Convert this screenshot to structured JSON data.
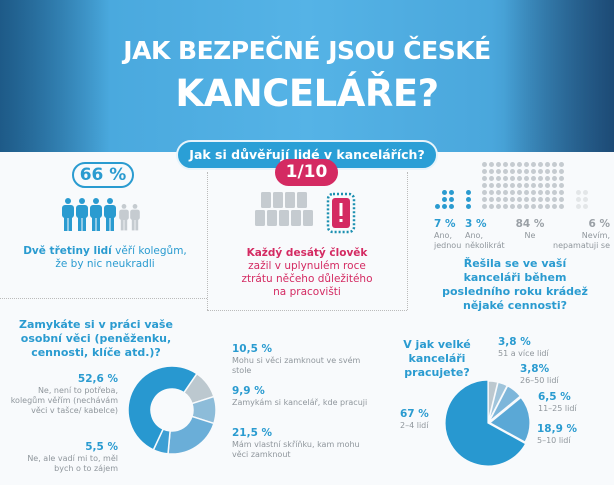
{
  "header": {
    "title_line1": "JAK BEZPEČNÉ JSOU ČESKÉ",
    "title_line2": "KANCELÁŘE?",
    "subtitle": "Jak si důvěřují lidé v kancelářích?"
  },
  "trust": {
    "value": "66 %",
    "text_bold": "Dvě třetiny lidí",
    "text_rest": " věří kolegům, že by nic neukradli",
    "people_total": 6,
    "people_highlighted": 4,
    "color": "#2a9bd0"
  },
  "loss": {
    "value": "1/10",
    "text_bold": "Každý desátý člověk",
    "text_rest": " zažil v uplynulém roce ztrátu něčeho důležitého na pracovišti",
    "phones_total": 10,
    "phones_highlighted": 1,
    "color": "#d42a62"
  },
  "theft": {
    "question": "Řešila se ve vaší kanceláři během posledního roku krádež nějaké cennosti?",
    "items": [
      {
        "pct": "7 %",
        "label": "Ano, jednou",
        "count": 7,
        "color": "#2a9bd0"
      },
      {
        "pct": "3 %",
        "label": "Ano, několikrát",
        "count": 3,
        "color": "#2a9bd0"
      },
      {
        "pct": "84 %",
        "label": "Ne",
        "count": 84,
        "color": "#c5cbd0"
      },
      {
        "pct": "6 %",
        "label": "Nevím, nepamatuji se",
        "count": 6,
        "color": "#e3e6e8"
      }
    ]
  },
  "chart_data": [
    {
      "type": "pie",
      "variant": "donut",
      "title": "Zamykáte si v práci vaše osobní věci (peněženku, cennosti, klíče atd.)?",
      "slices": [
        {
          "value": 10.5,
          "pct": "10,5 %",
          "label": "Mohu si věci zamknout ve svém stole",
          "color": "#bcc8cf"
        },
        {
          "value": 9.9,
          "pct": "9,9 %",
          "label": "Zamykám si kancelář, kde pracuji",
          "color": "#8dbcd9"
        },
        {
          "value": 21.5,
          "pct": "21,5 %",
          "label": "Mám vlastní skříňku, kam mohu věci zamknout",
          "color": "#6aaed8"
        },
        {
          "value": 5.5,
          "pct": "5,5 %",
          "label": "Ne, ale vadí mi to, měl bych o to zájem",
          "color": "#3d9fd4"
        },
        {
          "value": 52.6,
          "pct": "52,6 %",
          "label": "Ne, není to potřeba, kolegům věřím (nechávám věci v tašce/ kabelce)",
          "color": "#2898d0"
        }
      ]
    },
    {
      "type": "pie",
      "title": "V jak velké kanceláři pracujete?",
      "slices": [
        {
          "value": 3.8,
          "pct": "3,8 %",
          "label": "51 a více lidí",
          "color": "#bcc8cf"
        },
        {
          "value": 3.8,
          "pct": "3,8%",
          "label": "26–50 lidí",
          "color": "#9fc4db"
        },
        {
          "value": 6.5,
          "pct": "6,5 %",
          "label": "11–25 lidí",
          "color": "#7db6da"
        },
        {
          "value": 18.9,
          "pct": "18,9 %",
          "label": "5–10 lidí",
          "color": "#5aa8d6"
        },
        {
          "value": 67,
          "pct": "67 %",
          "label": "2–4 lidí",
          "color": "#2898d0"
        }
      ]
    }
  ]
}
